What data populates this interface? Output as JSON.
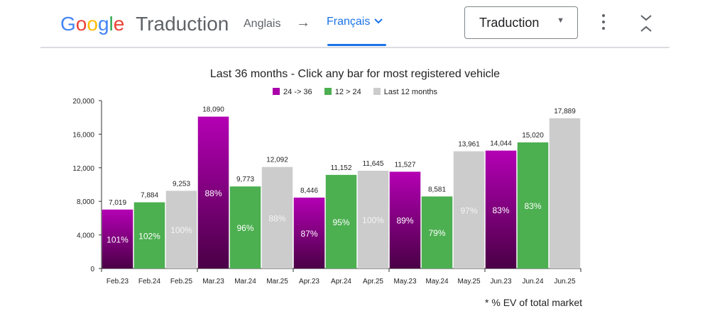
{
  "toolbar": {
    "brand": "Google",
    "brand_suffix": "Traduction",
    "source_language": "Anglais",
    "arrow": "→",
    "target_language": "Français",
    "mode": "Traduction"
  },
  "footnote": "* % EV of total market",
  "colors": {
    "purple_top": "#b400b4",
    "purple_bottom": "#4a0046",
    "green": "#4caf50",
    "gray": "#cccccc",
    "accent_blue": "#1a73e8"
  },
  "chart_data": {
    "type": "bar",
    "title": "Last 36 months - Click any bar for most registered vehicle",
    "legend": [
      {
        "label": "24 -> 36",
        "color": "#aa00aa"
      },
      {
        "label": "12 > 24",
        "color": "#4caf50"
      },
      {
        "label": "Last 12 months",
        "color": "#cccccc"
      }
    ],
    "categories": [
      "Feb.23",
      "Feb.24",
      "Feb.25",
      "Mar.23",
      "Mar.24",
      "Mar.25",
      "Apr.23",
      "Apr.24",
      "Apr.25",
      "May.23",
      "May.24",
      "May.25",
      "Jun.23",
      "Jun.24",
      "Jun.25"
    ],
    "values": [
      7019,
      7884,
      9253,
      18090,
      9773,
      12092,
      8446,
      11152,
      11645,
      11527,
      8581,
      13961,
      14044,
      15020,
      17889
    ],
    "value_labels": [
      "7,019",
      "7,884",
      "9,253",
      "18,090",
      "9,773",
      "12,092",
      "8,446",
      "11,152",
      "11,645",
      "11,527",
      "8,581",
      "13,961",
      "14,044",
      "15,020",
      "17,889"
    ],
    "ev_share_labels": [
      "101%",
      "102%",
      "100%",
      "88%",
      "96%",
      "88%",
      "87%",
      "95%",
      "100%",
      "89%",
      "79%",
      "97%",
      "83%",
      "83%",
      ""
    ],
    "series_by_bar": [
      0,
      1,
      2,
      0,
      1,
      2,
      0,
      1,
      2,
      0,
      1,
      2,
      0,
      1,
      2
    ],
    "ylim": [
      0,
      20000
    ],
    "yticks": [
      0,
      4000,
      8000,
      12000,
      16000,
      20000
    ],
    "ytick_labels": [
      "0",
      "4,000",
      "8,000",
      "12,000",
      "16,000",
      "20,000"
    ],
    "xlabel": "",
    "ylabel": "",
    "grid": false,
    "legend_position": "top"
  }
}
